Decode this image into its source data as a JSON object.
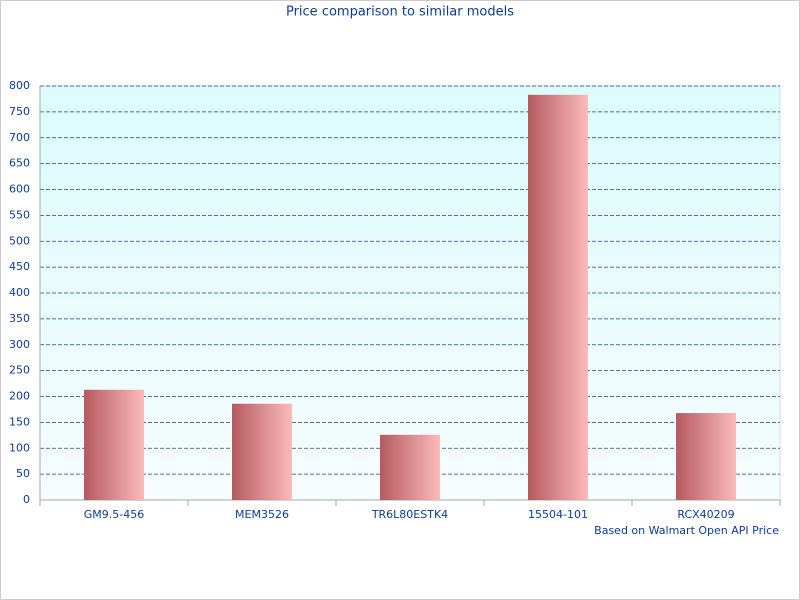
{
  "chart_data": {
    "type": "bar",
    "title": "Price comparison to similar models",
    "note": "Based on Walmart Open API Price",
    "categories": [
      "GM9.5-456",
      "MEM3526",
      "TR6L80ESTK4",
      "15504-101",
      "RCX40209"
    ],
    "values": [
      213,
      186,
      126,
      783,
      168
    ],
    "color": [
      "#b55a5e",
      "#fcbaba"
    ],
    "ylim": [
      0,
      800
    ],
    "yticks": [
      0,
      50,
      100,
      150,
      200,
      250,
      300,
      350,
      400,
      450,
      500,
      550,
      600,
      650,
      700,
      750,
      800
    ],
    "grid": true
  }
}
